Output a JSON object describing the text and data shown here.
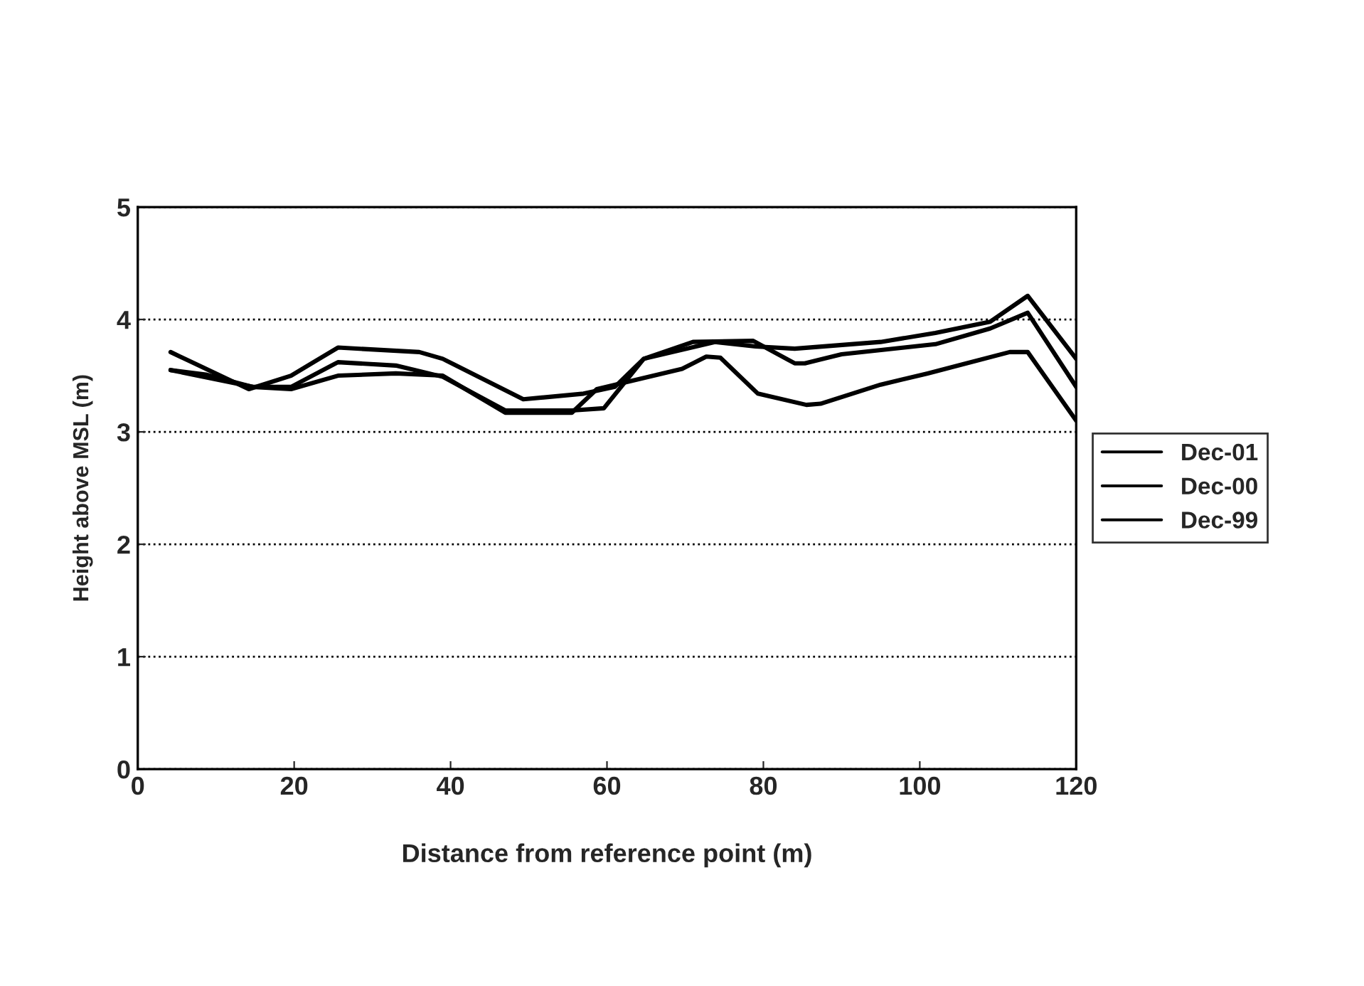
{
  "chart_data": {
    "type": "line",
    "xlabel": "Distance from reference point (m)",
    "ylabel": "Height above MSL (m)",
    "xlim": [
      0,
      120
    ],
    "xticks": [
      0,
      20,
      40,
      60,
      80,
      100,
      120
    ],
    "ylim": [
      0,
      5
    ],
    "yticks": [
      0,
      1,
      2,
      3,
      4,
      5
    ],
    "grid": "y",
    "legend": "right",
    "marker": "none",
    "line_style": "solid",
    "series": [
      {
        "name": "Dec-01",
        "color": "#000000",
        "x": [
          4.2,
          14.2,
          19.6,
          25.6,
          36,
          39,
          49.3,
          57,
          61,
          64.7,
          71,
          78.7,
          84,
          85.3,
          90,
          98,
          102,
          109,
          113.8,
          120
        ],
        "values": [
          3.71,
          3.38,
          3.5,
          3.75,
          3.71,
          3.65,
          3.29,
          3.34,
          3.4,
          3.65,
          3.8,
          3.81,
          3.61,
          3.61,
          3.69,
          3.75,
          3.78,
          3.92,
          4.06,
          3.4
        ]
      },
      {
        "name": "Dec-00",
        "color": "#000000",
        "x": [
          4.2,
          8.7,
          14.7,
          19.6,
          25.6,
          33,
          39,
          47,
          55.5,
          59.6,
          64.7,
          73.8,
          79,
          84,
          95,
          102,
          109,
          113.8,
          120
        ],
        "values": [
          3.55,
          3.51,
          3.4,
          3.4,
          3.62,
          3.59,
          3.49,
          3.19,
          3.19,
          3.21,
          3.65,
          3.8,
          3.76,
          3.74,
          3.8,
          3.88,
          3.98,
          4.21,
          3.65
        ]
      },
      {
        "name": "Dec-99",
        "color": "#000000",
        "x": [
          4.2,
          14.7,
          19.6,
          25.6,
          33,
          39,
          47,
          55.5,
          58.7,
          69.6,
          72.7,
          74.5,
          79.3,
          85.5,
          87.3,
          95,
          101,
          111.5,
          113.8,
          120
        ],
        "values": [
          3.55,
          3.4,
          3.38,
          3.5,
          3.52,
          3.5,
          3.17,
          3.17,
          3.38,
          3.56,
          3.67,
          3.66,
          3.34,
          3.24,
          3.25,
          3.42,
          3.52,
          3.71,
          3.71,
          3.1
        ]
      }
    ]
  }
}
